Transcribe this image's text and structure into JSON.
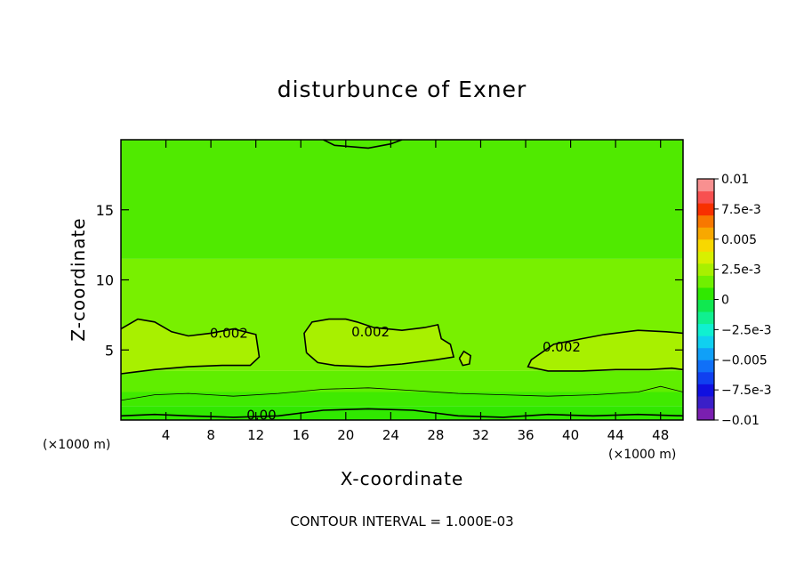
{
  "chart_data": {
    "type": "heatmap",
    "title": "disturbunce of Exner",
    "xlabel": "X-coordinate",
    "ylabel": "Z-coordinate",
    "x_unit_left": "(×1000 m)",
    "x_unit_right": "(×1000 m)",
    "footnote": "CONTOUR INTERVAL = 1.000E-03",
    "xlim": [
      0,
      50
    ],
    "ylim": [
      0,
      20
    ],
    "x_ticks": [
      4,
      8,
      12,
      16,
      20,
      24,
      28,
      32,
      36,
      40,
      44,
      48
    ],
    "y_ticks": [
      5,
      10,
      15
    ],
    "colorbar": {
      "min": -0.01,
      "max": 0.01,
      "tick_labels": [
        "0.01",
        "7.5e-3",
        "0.005",
        "2.5e-3",
        "0",
        "−2.5e-3",
        "−0.005",
        "−7.5e-3",
        "−0.01"
      ],
      "tick_values": [
        0.01,
        0.0075,
        0.005,
        0.0025,
        0,
        -0.0025,
        -0.005,
        -0.0075,
        -0.01
      ],
      "levels": [
        {
          "from": -0.01,
          "to": -0.009,
          "color": "#7a1fb0"
        },
        {
          "from": -0.009,
          "to": -0.008,
          "color": "#3a1fc8"
        },
        {
          "from": -0.008,
          "to": -0.007,
          "color": "#1010e0"
        },
        {
          "from": -0.007,
          "to": -0.006,
          "color": "#1040f0"
        },
        {
          "from": -0.006,
          "to": -0.005,
          "color": "#1070f8"
        },
        {
          "from": -0.005,
          "to": -0.004,
          "color": "#10a0f8"
        },
        {
          "from": -0.004,
          "to": -0.003,
          "color": "#10d0f0"
        },
        {
          "from": -0.003,
          "to": -0.002,
          "color": "#10f0d0"
        },
        {
          "from": -0.002,
          "to": -0.001,
          "color": "#10f090"
        },
        {
          "from": -0.001,
          "to": 0.0,
          "color": "#10e850"
        },
        {
          "from": 0.0,
          "to": 0.001,
          "color": "#30e800"
        },
        {
          "from": 0.001,
          "to": 0.002,
          "color": "#70f000"
        },
        {
          "from": 0.002,
          "to": 0.003,
          "color": "#a8f000"
        },
        {
          "from": 0.003,
          "to": 0.004,
          "color": "#d8f000"
        },
        {
          "from": 0.004,
          "to": 0.005,
          "color": "#f8d800"
        },
        {
          "from": 0.005,
          "to": 0.006,
          "color": "#f8a800"
        },
        {
          "from": 0.006,
          "to": 0.007,
          "color": "#f87800"
        },
        {
          "from": 0.007,
          "to": 0.008,
          "color": "#f83000"
        },
        {
          "from": 0.008,
          "to": 0.009,
          "color": "#f85050"
        },
        {
          "from": 0.009,
          "to": 0.01,
          "color": "#f89090"
        }
      ]
    },
    "field_bands": [
      {
        "z_from": 0.0,
        "z_to": 1.0,
        "value": 0.0005,
        "color": "#30e800"
      },
      {
        "z_from": 1.0,
        "z_to": 2.0,
        "value": 0.0005,
        "color": "#40ea00"
      },
      {
        "z_from": 2.0,
        "z_to": 3.5,
        "value": 0.001,
        "color": "#60ee00"
      },
      {
        "z_from": 3.5,
        "z_to": 11.5,
        "value": 0.0015,
        "color": "#78f000"
      },
      {
        "z_from": 11.5,
        "z_to": 20.0,
        "value": 0.0008,
        "color": "#50ea00"
      }
    ],
    "contours": [
      {
        "label": "0.002",
        "level": 0.002,
        "region": "left",
        "points": [
          [
            0,
            6.5
          ],
          [
            1.5,
            7.2
          ],
          [
            3,
            7.0
          ],
          [
            4.5,
            6.3
          ],
          [
            6,
            6.0
          ],
          [
            8,
            6.2
          ],
          [
            10,
            6.5
          ],
          [
            12,
            6.1
          ],
          [
            12.3,
            4.5
          ],
          [
            11.5,
            3.9
          ],
          [
            9,
            3.9
          ],
          [
            6,
            3.8
          ],
          [
            3,
            3.6
          ],
          [
            1,
            3.4
          ],
          [
            0,
            3.3
          ]
        ],
        "label_at": [
          9.6,
          6.2
        ]
      },
      {
        "label": "0.002",
        "level": 0.002,
        "region": "center",
        "points": [
          [
            16.5,
            4.8
          ],
          [
            16.3,
            6.2
          ],
          [
            17,
            7.0
          ],
          [
            18.5,
            7.2
          ],
          [
            20,
            7.2
          ],
          [
            21,
            7.0
          ],
          [
            22.5,
            6.6
          ],
          [
            25,
            6.4
          ],
          [
            27,
            6.6
          ],
          [
            28.2,
            6.8
          ],
          [
            28.5,
            5.8
          ],
          [
            29.3,
            5.4
          ],
          [
            29.6,
            4.5
          ],
          [
            28,
            4.3
          ],
          [
            25,
            4.0
          ],
          [
            22,
            3.8
          ],
          [
            19,
            3.9
          ],
          [
            17.5,
            4.1
          ],
          [
            16.5,
            4.8
          ]
        ],
        "label_at": [
          22.2,
          6.3
        ]
      },
      {
        "label": "0.002",
        "level": 0.002,
        "region": "right",
        "points": [
          [
            50,
            6.2
          ],
          [
            48.5,
            6.3
          ],
          [
            46,
            6.4
          ],
          [
            43,
            6.1
          ],
          [
            41,
            5.8
          ],
          [
            38.5,
            5.4
          ],
          [
            36.5,
            4.3
          ],
          [
            36.2,
            3.8
          ],
          [
            38,
            3.5
          ],
          [
            41,
            3.5
          ],
          [
            44,
            3.6
          ],
          [
            47,
            3.6
          ],
          [
            49,
            3.7
          ],
          [
            50,
            3.6
          ]
        ],
        "label_at": [
          39.2,
          5.2
        ]
      },
      {
        "label": "",
        "level": 0.002,
        "region": "islet",
        "points": [
          [
            30.1,
            4.4
          ],
          [
            30.5,
            4.9
          ],
          [
            31.1,
            4.6
          ],
          [
            31.0,
            4.0
          ],
          [
            30.4,
            3.9
          ],
          [
            30.1,
            4.4
          ]
        ],
        "label_at": null
      },
      {
        "label": "0.00",
        "level": 0.0,
        "region": "bottom",
        "points": [
          [
            0,
            0.3
          ],
          [
            3,
            0.4
          ],
          [
            6,
            0.3
          ],
          [
            10,
            0.2
          ],
          [
            14,
            0.3
          ],
          [
            18,
            0.7
          ],
          [
            22,
            0.8
          ],
          [
            26,
            0.7
          ],
          [
            30,
            0.3
          ],
          [
            34,
            0.2
          ],
          [
            38,
            0.4
          ],
          [
            42,
            0.3
          ],
          [
            46,
            0.4
          ],
          [
            50,
            0.3
          ]
        ],
        "label_at": [
          12.5,
          0.35
        ]
      },
      {
        "label": "",
        "level": 0.0005,
        "region": "low",
        "points": [
          [
            0,
            1.4
          ],
          [
            3,
            1.8
          ],
          [
            6,
            1.9
          ],
          [
            10,
            1.7
          ],
          [
            14,
            1.9
          ],
          [
            18,
            2.2
          ],
          [
            22,
            2.3
          ],
          [
            26,
            2.1
          ],
          [
            30,
            1.9
          ],
          [
            34,
            1.8
          ],
          [
            38,
            1.7
          ],
          [
            42,
            1.8
          ],
          [
            46,
            2.0
          ],
          [
            48,
            2.4
          ],
          [
            50,
            2.0
          ]
        ],
        "label_at": null
      },
      {
        "label": "",
        "level": 0.0,
        "region": "top",
        "points": [
          [
            18,
            20
          ],
          [
            19,
            19.6
          ],
          [
            22,
            19.4
          ],
          [
            24,
            19.7
          ],
          [
            25,
            20
          ]
        ],
        "label_at": null
      }
    ]
  }
}
